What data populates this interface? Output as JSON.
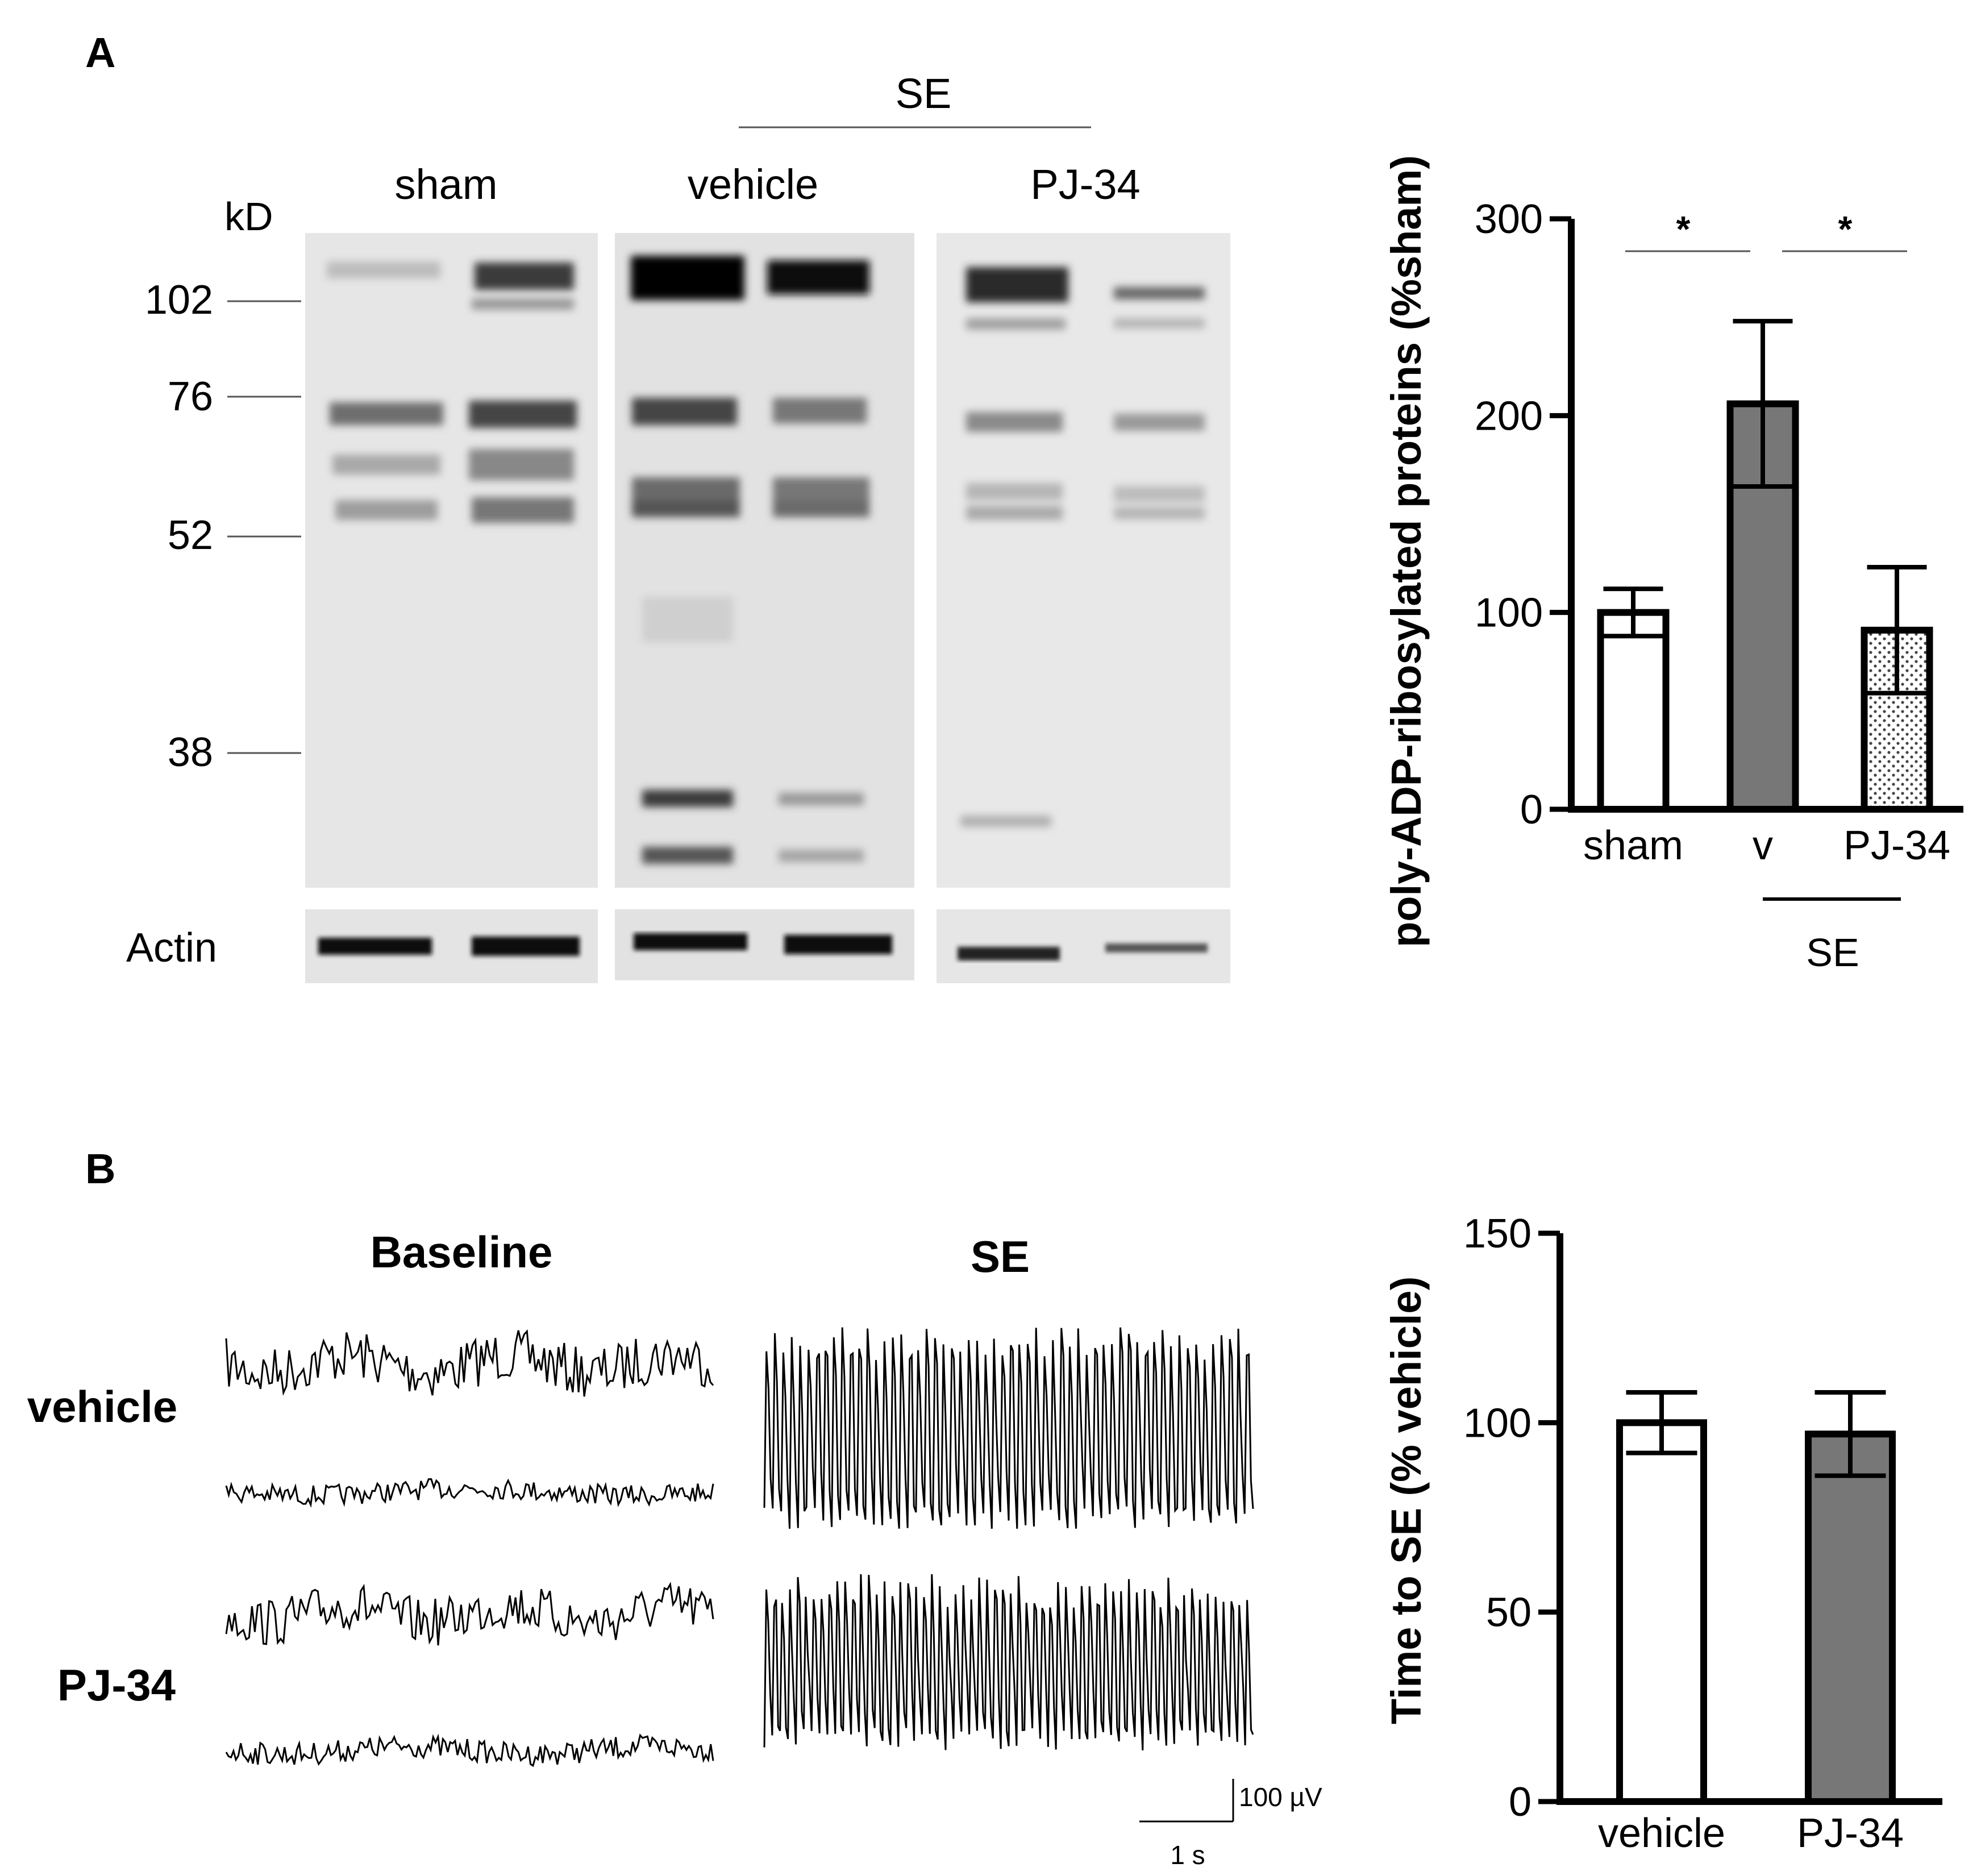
{
  "panel_a": {
    "letter": "A",
    "se_label": "SE",
    "kd_label": "kD",
    "markers": [
      "102",
      "76",
      "52",
      "38"
    ],
    "groups": [
      "sham",
      "vehicle",
      "PJ-34"
    ],
    "actin_label": "Actin"
  },
  "panel_b": {
    "letter": "B",
    "col_titles": [
      "Baseline",
      "SE"
    ],
    "row_labels": [
      "vehicle",
      "PJ-34"
    ],
    "scale_amp": "100 µV",
    "scale_time": "1 s"
  },
  "chart_data": [
    {
      "type": "bar",
      "title": "",
      "xlabel": "",
      "ylabel": "poly-ADP-ribosylated proteins (%sham)",
      "categories": [
        "sham",
        "v",
        "PJ-34"
      ],
      "values": [
        100,
        206,
        91
      ],
      "errors": [
        12,
        42,
        32
      ],
      "fills": [
        "#ffffff",
        "#777777",
        "dotted"
      ],
      "ylim": [
        0,
        300
      ],
      "yticks": [
        "0",
        "100",
        "200",
        "300"
      ],
      "group_label": "SE",
      "significance": [
        "*",
        "*"
      ]
    },
    {
      "type": "bar",
      "title": "",
      "xlabel": "",
      "ylabel": "Time to SE (% vehicle)",
      "categories": [
        "vehicle",
        "PJ-34"
      ],
      "values": [
        100,
        97
      ],
      "errors": [
        8,
        11
      ],
      "fills": [
        "#ffffff",
        "#777777"
      ],
      "ylim": [
        0,
        150
      ],
      "yticks": [
        "0",
        "50",
        "100",
        "150"
      ]
    }
  ]
}
